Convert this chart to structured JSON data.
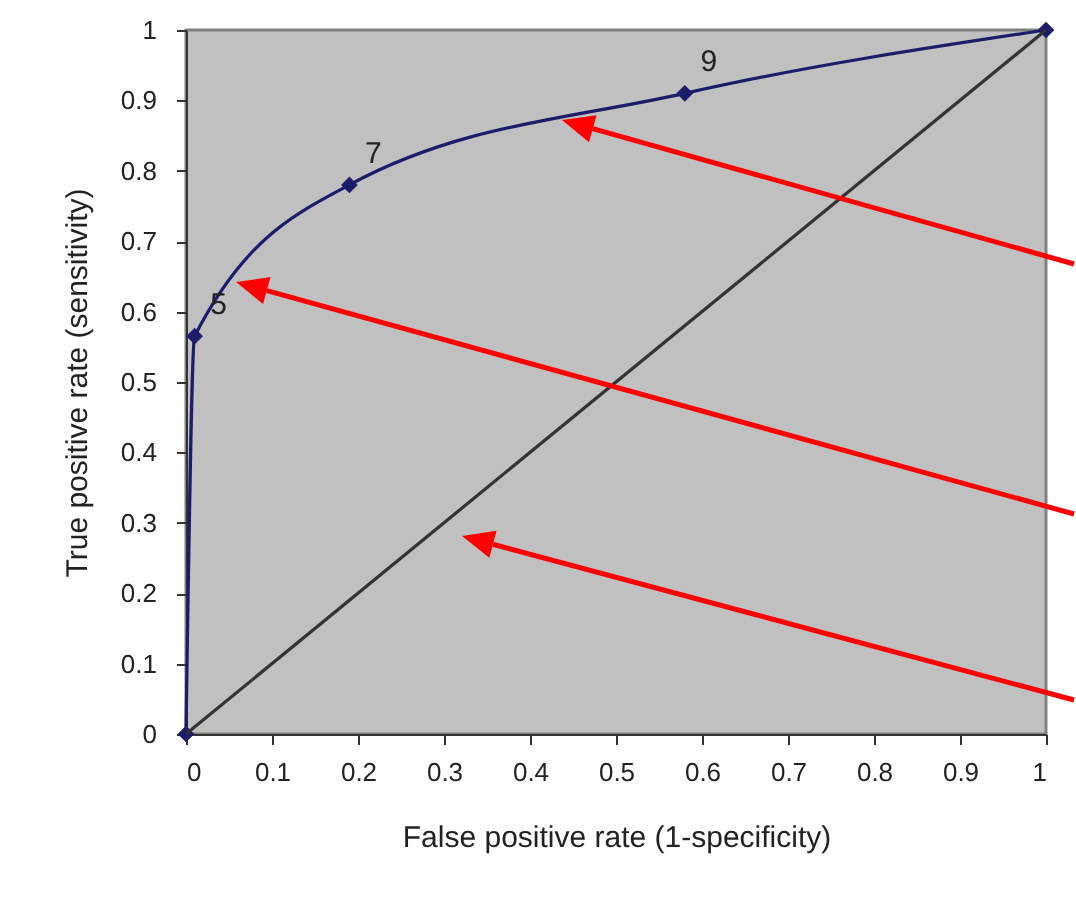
{
  "chart_data": {
    "type": "line",
    "xlabel": "False positive rate (1-specificity)",
    "ylabel": "True positive rate (sensitivity)",
    "xlim": [
      0,
      1
    ],
    "ylim": [
      0,
      1
    ],
    "xticks": [
      0,
      0.1,
      0.2,
      0.3,
      0.4,
      0.5,
      0.6,
      0.7,
      0.8,
      0.9,
      1
    ],
    "yticks": [
      0,
      0.1,
      0.2,
      0.3,
      0.4,
      0.5,
      0.6,
      0.7,
      0.8,
      0.9,
      1
    ],
    "series": [
      {
        "x": [
          0,
          0.01,
          0.19,
          0.58,
          1
        ],
        "values": [
          0,
          0.565,
          0.78,
          0.91,
          1
        ],
        "color": "#1c1c6b",
        "marker": "diamond"
      },
      {
        "x": [
          0,
          1
        ],
        "values": [
          0,
          1
        ],
        "color": "#333333",
        "marker": "none"
      }
    ],
    "annotations": [
      {
        "text": "5",
        "x": 0.01,
        "y": 0.565
      },
      {
        "text": "7",
        "x": 0.19,
        "y": 0.78
      },
      {
        "text": "9",
        "x": 0.58,
        "y": 0.91
      }
    ]
  }
}
